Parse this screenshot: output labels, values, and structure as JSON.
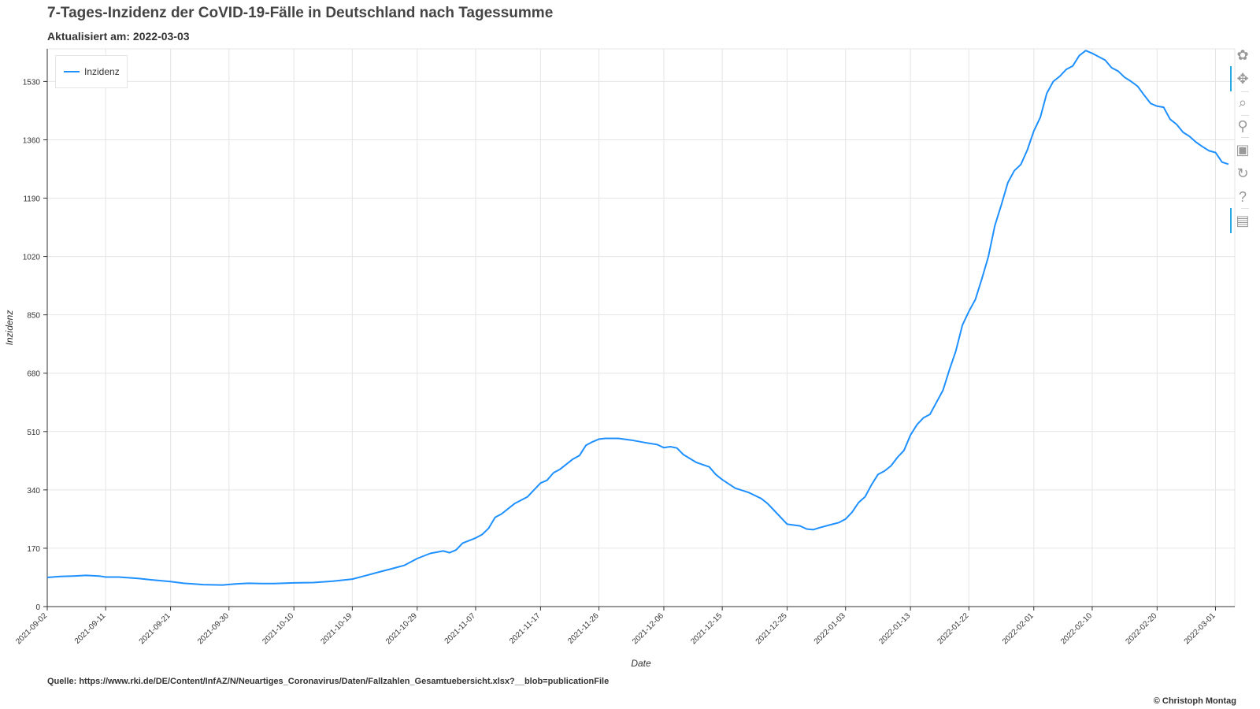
{
  "title": "7-Tages-Inzidenz der CoVID-19-Fälle in Deutschland nach Tagessumme",
  "subtitle": "Aktualisiert am: 2022-03-03",
  "source": "Quelle: https://www.rki.de/DE/Content/InfAZ/N/Neuartiges_Coronavirus/Daten/Fallzahlen_Gesamtuebersicht.xlsx?__blob=publicationFile",
  "copyright": "© Christoph Montag",
  "toolbar": {
    "tools": [
      {
        "name": "bokeh-logo-icon",
        "glyph": "✿"
      },
      {
        "name": "pan-tool-icon",
        "glyph": "✥"
      },
      {
        "name": "box-zoom-tool-icon",
        "glyph": "⌕"
      },
      {
        "name": "wheel-zoom-tool-icon",
        "glyph": "⚲"
      },
      {
        "name": "save-tool-icon",
        "glyph": "▣"
      },
      {
        "name": "reset-tool-icon",
        "glyph": "↻"
      },
      {
        "name": "help-tool-icon",
        "glyph": "?"
      },
      {
        "name": "hover-tool-icon",
        "glyph": "▤"
      }
    ]
  },
  "chart_data": {
    "type": "line",
    "xlabel": "Date",
    "ylabel": "Inzidenz",
    "x_range": [
      "2021-09-02",
      "2022-03-03"
    ],
    "ylim": [
      0,
      1625
    ],
    "y_ticks": [
      0,
      170,
      340,
      510,
      680,
      850,
      1020,
      1190,
      1360,
      1530
    ],
    "x_ticks": [
      "2021-09-02",
      "2021-09-11",
      "2021-09-21",
      "2021-09-30",
      "2021-10-10",
      "2021-10-19",
      "2021-10-29",
      "2021-11-07",
      "2021-11-17",
      "2021-11-26",
      "2021-12-06",
      "2021-12-15",
      "2021-12-25",
      "2022-01-03",
      "2022-01-13",
      "2022-01-22",
      "2022-02-01",
      "2022-02-10",
      "2022-02-20",
      "2022-03-01"
    ],
    "grid": true,
    "legend_position": "top-left",
    "series": [
      {
        "name": "Inzidenz",
        "color": "#1e90ff",
        "points": [
          [
            "2021-09-02",
            85
          ],
          [
            "2021-09-04",
            88
          ],
          [
            "2021-09-06",
            89
          ],
          [
            "2021-09-08",
            91
          ],
          [
            "2021-09-10",
            89
          ],
          [
            "2021-09-11",
            86
          ],
          [
            "2021-09-13",
            86
          ],
          [
            "2021-09-16",
            82
          ],
          [
            "2021-09-18",
            78
          ],
          [
            "2021-09-21",
            73
          ],
          [
            "2021-09-23",
            68
          ],
          [
            "2021-09-26",
            64
          ],
          [
            "2021-09-29",
            63
          ],
          [
            "2021-10-01",
            66
          ],
          [
            "2021-10-03",
            68
          ],
          [
            "2021-10-05",
            67
          ],
          [
            "2021-10-07",
            67
          ],
          [
            "2021-10-10",
            69
          ],
          [
            "2021-10-13",
            70
          ],
          [
            "2021-10-16",
            74
          ],
          [
            "2021-10-19",
            80
          ],
          [
            "2021-10-21",
            90
          ],
          [
            "2021-10-23",
            100
          ],
          [
            "2021-10-25",
            110
          ],
          [
            "2021-10-27",
            120
          ],
          [
            "2021-10-29",
            140
          ],
          [
            "2021-10-31",
            155
          ],
          [
            "2021-11-02",
            162
          ],
          [
            "2021-11-03",
            157
          ],
          [
            "2021-11-04",
            165
          ],
          [
            "2021-11-05",
            185
          ],
          [
            "2021-11-07",
            200
          ],
          [
            "2021-11-08",
            210
          ],
          [
            "2021-11-09",
            228
          ],
          [
            "2021-11-10",
            260
          ],
          [
            "2021-11-11",
            270
          ],
          [
            "2021-11-13",
            300
          ],
          [
            "2021-11-15",
            320
          ],
          [
            "2021-11-17",
            360
          ],
          [
            "2021-11-18",
            368
          ],
          [
            "2021-11-19",
            390
          ],
          [
            "2021-11-20",
            400
          ],
          [
            "2021-11-22",
            430
          ],
          [
            "2021-11-23",
            440
          ],
          [
            "2021-11-24",
            470
          ],
          [
            "2021-11-25",
            480
          ],
          [
            "2021-11-26",
            488
          ],
          [
            "2021-11-27",
            490
          ],
          [
            "2021-11-29",
            490
          ],
          [
            "2021-12-01",
            485
          ],
          [
            "2021-12-03",
            478
          ],
          [
            "2021-12-05",
            472
          ],
          [
            "2021-12-06",
            463
          ],
          [
            "2021-12-07",
            466
          ],
          [
            "2021-12-08",
            462
          ],
          [
            "2021-12-09",
            443
          ],
          [
            "2021-12-11",
            420
          ],
          [
            "2021-12-13",
            407
          ],
          [
            "2021-12-14",
            385
          ],
          [
            "2021-12-15",
            370
          ],
          [
            "2021-12-17",
            345
          ],
          [
            "2021-12-19",
            333
          ],
          [
            "2021-12-21",
            315
          ],
          [
            "2021-12-22",
            300
          ],
          [
            "2021-12-23",
            280
          ],
          [
            "2021-12-25",
            240
          ],
          [
            "2021-12-27",
            235
          ],
          [
            "2021-12-28",
            226
          ],
          [
            "2021-12-29",
            224
          ],
          [
            "2021-12-30",
            230
          ],
          [
            "2022-01-01",
            240
          ],
          [
            "2022-01-02",
            245
          ],
          [
            "2022-01-03",
            255
          ],
          [
            "2022-01-04",
            275
          ],
          [
            "2022-01-05",
            303
          ],
          [
            "2022-01-06",
            320
          ],
          [
            "2022-01-07",
            355
          ],
          [
            "2022-01-08",
            385
          ],
          [
            "2022-01-09",
            395
          ],
          [
            "2022-01-10",
            410
          ],
          [
            "2022-01-11",
            435
          ],
          [
            "2022-01-12",
            455
          ],
          [
            "2022-01-13",
            500
          ],
          [
            "2022-01-14",
            530
          ],
          [
            "2022-01-15",
            550
          ],
          [
            "2022-01-16",
            560
          ],
          [
            "2022-01-17",
            595
          ],
          [
            "2022-01-18",
            630
          ],
          [
            "2022-01-19",
            690
          ],
          [
            "2022-01-20",
            745
          ],
          [
            "2022-01-21",
            820
          ],
          [
            "2022-01-22",
            860
          ],
          [
            "2022-01-23",
            895
          ],
          [
            "2022-01-24",
            955
          ],
          [
            "2022-01-25",
            1020
          ],
          [
            "2022-01-26",
            1110
          ],
          [
            "2022-01-27",
            1170
          ],
          [
            "2022-01-28",
            1235
          ],
          [
            "2022-01-29",
            1270
          ],
          [
            "2022-01-30",
            1288
          ],
          [
            "2022-01-31",
            1330
          ],
          [
            "2022-02-01",
            1385
          ],
          [
            "2022-02-02",
            1425
          ],
          [
            "2022-02-03",
            1495
          ],
          [
            "2022-02-04",
            1530
          ],
          [
            "2022-02-05",
            1545
          ],
          [
            "2022-02-06",
            1565
          ],
          [
            "2022-02-07",
            1575
          ],
          [
            "2022-02-08",
            1605
          ],
          [
            "2022-02-09",
            1620
          ],
          [
            "2022-02-10",
            1612
          ],
          [
            "2022-02-11",
            1602
          ],
          [
            "2022-02-12",
            1592
          ],
          [
            "2022-02-13",
            1570
          ],
          [
            "2022-02-14",
            1560
          ],
          [
            "2022-02-15",
            1542
          ],
          [
            "2022-02-16",
            1530
          ],
          [
            "2022-02-17",
            1516
          ],
          [
            "2022-02-18",
            1490
          ],
          [
            "2022-02-19",
            1466
          ],
          [
            "2022-02-20",
            1458
          ],
          [
            "2022-02-21",
            1455
          ],
          [
            "2022-02-22",
            1420
          ],
          [
            "2022-02-23",
            1405
          ],
          [
            "2022-02-24",
            1382
          ],
          [
            "2022-02-25",
            1370
          ],
          [
            "2022-02-26",
            1353
          ],
          [
            "2022-02-27",
            1340
          ],
          [
            "2022-02-28",
            1328
          ],
          [
            "2022-03-01",
            1323
          ],
          [
            "2022-03-02",
            1295
          ],
          [
            "2022-03-03",
            1289
          ]
        ]
      }
    ]
  }
}
